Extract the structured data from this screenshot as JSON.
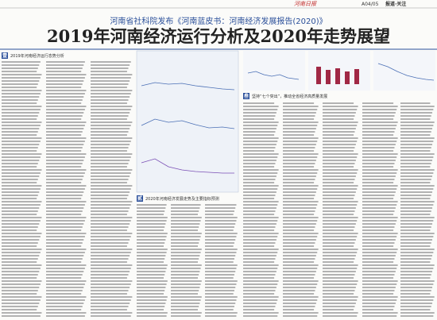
{
  "masthead": {
    "page": "A04/05",
    "section": "报道·关注"
  },
  "header": {
    "kicker": "河南省社科院发布《河南蓝皮书：河南经济发展报告(2020)》",
    "title": "2019年河南经济运行分析及2020年走势展望"
  },
  "sections": [
    {
      "number": "壹",
      "heading": "2019年河南经济运行态势分析"
    },
    {
      "number": "贰",
      "heading": "2020年河南经济发展走势及主要指标预测"
    },
    {
      "number": "叁",
      "heading": "坚持“七个突出”，推动全省经济高质量发展"
    }
  ]
}
